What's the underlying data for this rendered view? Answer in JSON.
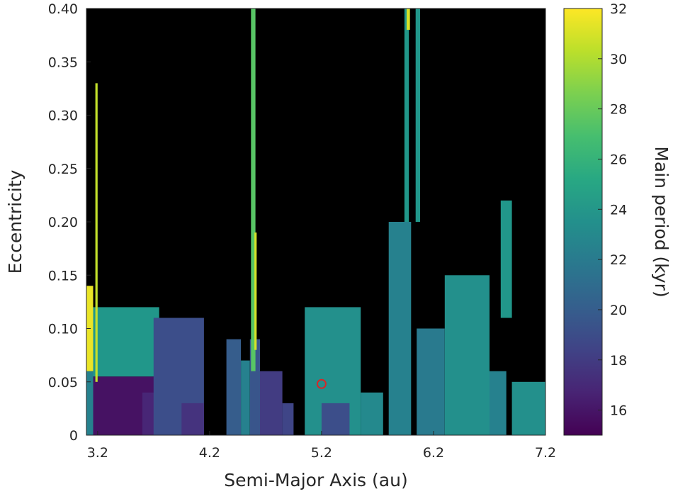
{
  "chart_data": {
    "type": "heatmap",
    "title": "",
    "xlabel": "Semi-Major Axis (au)",
    "ylabel": "Eccentricity",
    "colorbar_label": "Main period (kyr)",
    "colormap": "viridis",
    "background_color": "#000000",
    "xlim": [
      3.1,
      7.2
    ],
    "ylim": [
      0,
      0.4
    ],
    "clim": [
      15,
      32
    ],
    "x_ticks": [
      3.2,
      4.2,
      5.2,
      6.2,
      7.2
    ],
    "x_tick_labels": [
      "3.2",
      "4.2",
      "5.2",
      "6.2",
      "7.2"
    ],
    "y_ticks": [
      0,
      0.05,
      0.1,
      0.15,
      0.2,
      0.25,
      0.3,
      0.35,
      0.4
    ],
    "y_tick_labels": [
      "0",
      "0.05",
      "0.10",
      "0.15",
      "0.20",
      "0.25",
      "0.30",
      "0.35",
      "0.40"
    ],
    "colorbar_ticks": [
      16,
      18,
      20,
      22,
      24,
      26,
      28,
      30,
      32
    ],
    "colorbar_tick_labels": [
      "16",
      "18",
      "20",
      "22",
      "24",
      "26",
      "28",
      "30",
      "32"
    ],
    "marker": {
      "x": 5.2,
      "y": 0.048,
      "shape": "open-circle",
      "color": "#d62728"
    },
    "regions": [
      {
        "x0": 3.1,
        "x1": 3.16,
        "y0": 0.0,
        "y1": 0.06,
        "v": 22.5
      },
      {
        "x0": 3.16,
        "x1": 3.8,
        "y0": 0.0,
        "y1": 0.055,
        "v": 15.8
      },
      {
        "x0": 3.6,
        "x1": 3.95,
        "y0": 0.0,
        "y1": 0.04,
        "v": 16.8
      },
      {
        "x0": 3.16,
        "x1": 3.75,
        "y0": 0.055,
        "y1": 0.12,
        "v": 24.0
      },
      {
        "x0": 3.7,
        "x1": 4.15,
        "y0": 0.0,
        "y1": 0.11,
        "v": 19.0
      },
      {
        "x0": 3.95,
        "x1": 4.15,
        "y0": 0.0,
        "y1": 0.03,
        "v": 17.5
      },
      {
        "x0": 3.1,
        "x1": 3.16,
        "y0": 0.06,
        "y1": 0.14,
        "v": 31.5
      },
      {
        "x0": 4.35,
        "x1": 4.48,
        "y0": 0.0,
        "y1": 0.09,
        "v": 20.0
      },
      {
        "x0": 4.48,
        "x1": 4.56,
        "y0": 0.0,
        "y1": 0.07,
        "v": 22.5
      },
      {
        "x0": 4.56,
        "x1": 4.65,
        "y0": 0.0,
        "y1": 0.09,
        "v": 19.5
      },
      {
        "x0": 4.65,
        "x1": 4.85,
        "y0": 0.0,
        "y1": 0.06,
        "v": 18.0
      },
      {
        "x0": 4.85,
        "x1": 4.95,
        "y0": 0.0,
        "y1": 0.03,
        "v": 18.5
      },
      {
        "x0": 5.05,
        "x1": 5.55,
        "y0": 0.0,
        "y1": 0.12,
        "v": 23.5
      },
      {
        "x0": 5.2,
        "x1": 5.45,
        "y0": 0.0,
        "y1": 0.03,
        "v": 19.0
      },
      {
        "x0": 5.55,
        "x1": 5.75,
        "y0": 0.0,
        "y1": 0.04,
        "v": 23.0
      },
      {
        "x0": 5.8,
        "x1": 6.0,
        "y0": 0.0,
        "y1": 0.2,
        "v": 22.5
      },
      {
        "x0": 6.05,
        "x1": 6.3,
        "y0": 0.0,
        "y1": 0.1,
        "v": 22.0
      },
      {
        "x0": 6.3,
        "x1": 6.7,
        "y0": 0.0,
        "y1": 0.15,
        "v": 23.5
      },
      {
        "x0": 6.7,
        "x1": 6.85,
        "y0": 0.0,
        "y1": 0.06,
        "v": 22.5
      },
      {
        "x0": 6.8,
        "x1": 6.9,
        "y0": 0.11,
        "y1": 0.22,
        "v": 24.0
      },
      {
        "x0": 6.9,
        "x1": 7.2,
        "y0": 0.0,
        "y1": 0.05,
        "v": 23.5
      }
    ],
    "strips": [
      {
        "x0": 3.18,
        "x1": 3.2,
        "y0": 0.05,
        "y1": 0.33,
        "v": 30.5
      },
      {
        "x0": 4.57,
        "x1": 4.61,
        "y0": 0.06,
        "y1": 0.4,
        "v": 27.5
      },
      {
        "x0": 4.6,
        "x1": 4.62,
        "y0": 0.08,
        "y1": 0.19,
        "v": 31.0
      },
      {
        "x0": 5.94,
        "x1": 5.98,
        "y0": 0.2,
        "y1": 0.4,
        "v": 24.0
      },
      {
        "x0": 6.04,
        "x1": 6.08,
        "y0": 0.2,
        "y1": 0.4,
        "v": 24.0
      },
      {
        "x0": 5.96,
        "x1": 5.99,
        "y0": 0.38,
        "y1": 0.4,
        "v": 31.0
      }
    ]
  }
}
